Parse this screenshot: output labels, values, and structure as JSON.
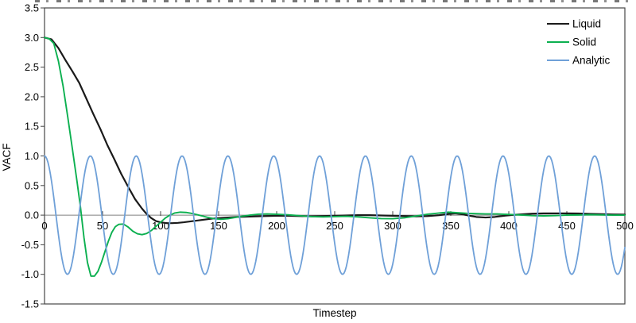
{
  "chart_data": {
    "type": "line",
    "title": "",
    "xlabel": "Timestep",
    "ylabel": "VACF",
    "xlim": [
      0,
      500
    ],
    "ylim": [
      -1.5,
      3.5
    ],
    "grid": false,
    "zero_line": true,
    "x_ticks": {
      "values": [
        0,
        50,
        100,
        150,
        200,
        250,
        300,
        350,
        400,
        450,
        500
      ],
      "labels": [
        "0",
        "50",
        "100",
        "150",
        "200",
        "250",
        "300",
        "350",
        "400",
        "450",
        "500"
      ]
    },
    "y_ticks": {
      "values": [
        3.5,
        3.0,
        2.5,
        2.0,
        1.5,
        1.0,
        0.5,
        0.0,
        -0.5,
        -1.0,
        -1.5
      ],
      "labels": [
        "3.5",
        "3.0",
        "2.5",
        "2.0",
        "1.5",
        "1.0",
        "0.5",
        "0.0",
        "-0.5",
        "-1.0",
        "-1.5"
      ]
    },
    "legend": {
      "position": "top-right-inside",
      "entries": [
        "Liquid",
        "Solid",
        "Analytic"
      ]
    },
    "series": [
      {
        "name": "Liquid",
        "color": "#1a1a1a",
        "width": 2.2,
        "points": [
          [
            0,
            3.0
          ],
          [
            6,
            2.97
          ],
          [
            12,
            2.82
          ],
          [
            18,
            2.62
          ],
          [
            24,
            2.43
          ],
          [
            30,
            2.23
          ],
          [
            36,
            1.97
          ],
          [
            42,
            1.71
          ],
          [
            48,
            1.46
          ],
          [
            54,
            1.19
          ],
          [
            60,
            0.95
          ],
          [
            66,
            0.7
          ],
          [
            72,
            0.48
          ],
          [
            78,
            0.27
          ],
          [
            84,
            0.11
          ],
          [
            88,
            0.02
          ],
          [
            92,
            -0.05
          ],
          [
            96,
            -0.1
          ],
          [
            100,
            -0.12
          ],
          [
            105,
            -0.135
          ],
          [
            110,
            -0.135
          ],
          [
            115,
            -0.13
          ],
          [
            120,
            -0.12
          ],
          [
            126,
            -0.105
          ],
          [
            132,
            -0.09
          ],
          [
            138,
            -0.075
          ],
          [
            144,
            -0.06
          ],
          [
            150,
            -0.05
          ],
          [
            158,
            -0.04
          ],
          [
            166,
            -0.03
          ],
          [
            174,
            -0.025
          ],
          [
            182,
            -0.02
          ],
          [
            190,
            -0.015
          ],
          [
            200,
            -0.01
          ],
          [
            210,
            -0.01
          ],
          [
            220,
            -0.015
          ],
          [
            230,
            -0.02
          ],
          [
            240,
            -0.015
          ],
          [
            250,
            -0.01
          ],
          [
            260,
            -0.005
          ],
          [
            270,
            0.0
          ],
          [
            280,
            0.0
          ],
          [
            290,
            -0.005
          ],
          [
            300,
            -0.01
          ],
          [
            310,
            -0.015
          ],
          [
            320,
            -0.02
          ],
          [
            330,
            -0.015
          ],
          [
            340,
            0.0
          ],
          [
            348,
            0.02
          ],
          [
            354,
            0.03
          ],
          [
            360,
            0.015
          ],
          [
            366,
            -0.01
          ],
          [
            372,
            -0.03
          ],
          [
            380,
            -0.04
          ],
          [
            388,
            -0.03
          ],
          [
            396,
            -0.01
          ],
          [
            404,
            0.005
          ],
          [
            412,
            0.015
          ],
          [
            420,
            0.025
          ],
          [
            430,
            0.03
          ],
          [
            440,
            0.03
          ],
          [
            450,
            0.03
          ],
          [
            460,
            0.028
          ],
          [
            470,
            0.022
          ],
          [
            480,
            0.017
          ],
          [
            490,
            0.012
          ],
          [
            500,
            0.01
          ]
        ]
      },
      {
        "name": "Solid",
        "color": "#0cb050",
        "width": 1.9,
        "points": [
          [
            0,
            3.0
          ],
          [
            4,
            2.98
          ],
          [
            8,
            2.9
          ],
          [
            12,
            2.6
          ],
          [
            16,
            2.18
          ],
          [
            20,
            1.66
          ],
          [
            24,
            1.12
          ],
          [
            28,
            0.57
          ],
          [
            31,
            0.13
          ],
          [
            34,
            -0.38
          ],
          [
            37,
            -0.8
          ],
          [
            40,
            -1.03
          ],
          [
            43,
            -1.03
          ],
          [
            46,
            -0.95
          ],
          [
            49,
            -0.8
          ],
          [
            52,
            -0.62
          ],
          [
            55,
            -0.44
          ],
          [
            58,
            -0.29
          ],
          [
            61,
            -0.195
          ],
          [
            64,
            -0.155
          ],
          [
            68,
            -0.15
          ],
          [
            72,
            -0.2
          ],
          [
            76,
            -0.27
          ],
          [
            80,
            -0.315
          ],
          [
            84,
            -0.33
          ],
          [
            88,
            -0.31
          ],
          [
            92,
            -0.26
          ],
          [
            96,
            -0.19
          ],
          [
            100,
            -0.12
          ],
          [
            104,
            -0.05
          ],
          [
            108,
            0.0
          ],
          [
            112,
            0.035
          ],
          [
            117,
            0.05
          ],
          [
            122,
            0.045
          ],
          [
            128,
            0.025
          ],
          [
            134,
            -0.005
          ],
          [
            140,
            -0.035
          ],
          [
            146,
            -0.06
          ],
          [
            152,
            -0.07
          ],
          [
            158,
            -0.06
          ],
          [
            164,
            -0.04
          ],
          [
            170,
            -0.02
          ],
          [
            177,
            0.0
          ],
          [
            184,
            0.015
          ],
          [
            192,
            0.02
          ],
          [
            200,
            0.015
          ],
          [
            210,
            0.005
          ],
          [
            220,
            -0.01
          ],
          [
            230,
            -0.025
          ],
          [
            240,
            -0.03
          ],
          [
            250,
            -0.025
          ],
          [
            260,
            -0.02
          ],
          [
            270,
            -0.03
          ],
          [
            280,
            -0.045
          ],
          [
            290,
            -0.058
          ],
          [
            300,
            -0.06
          ],
          [
            310,
            -0.045
          ],
          [
            320,
            -0.015
          ],
          [
            330,
            0.015
          ],
          [
            340,
            0.035
          ],
          [
            348,
            0.05
          ],
          [
            356,
            0.04
          ],
          [
            364,
            0.03
          ],
          [
            372,
            0.025
          ],
          [
            380,
            0.02
          ],
          [
            390,
            0.02
          ],
          [
            400,
            0.012
          ],
          [
            410,
            0.003
          ],
          [
            420,
            -0.008
          ],
          [
            430,
            -0.012
          ],
          [
            440,
            -0.008
          ],
          [
            450,
            0.0
          ],
          [
            460,
            0.003
          ],
          [
            470,
            0.008
          ],
          [
            480,
            0.004
          ],
          [
            490,
            0.0
          ],
          [
            500,
            0.0
          ]
        ]
      },
      {
        "name": "Analytic",
        "color": "#6fa0d8",
        "width": 1.8,
        "generator": {
          "type": "cosine",
          "amplitude": 1.0,
          "period": 39.5,
          "t_start": 0,
          "t_end": 500,
          "t_step": 1
        }
      }
    ],
    "style": {
      "plot_border_color": "#454545",
      "zero_line_color": "#808080",
      "tick_color": "#454545",
      "text_color": "#000000",
      "background": "#ffffff"
    }
  }
}
